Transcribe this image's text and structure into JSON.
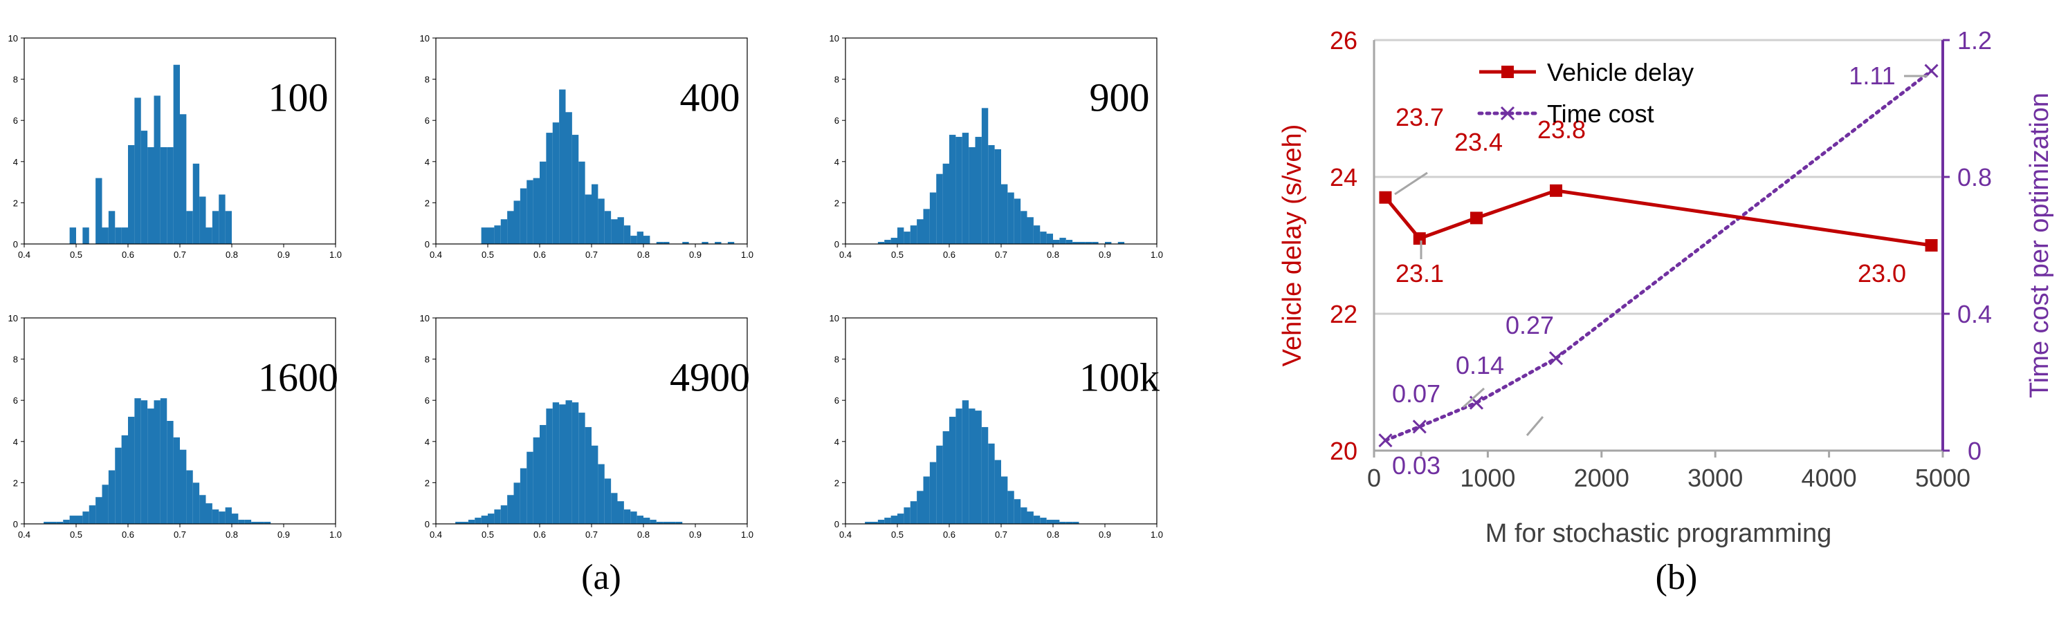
{
  "chart_data": [
    {
      "type": "bar",
      "panel": "a",
      "subtitle": "(a)",
      "histograms": [
        {
          "label": "100",
          "bin_width": 0.0125,
          "bins": [
            [
              0.4875,
              0.8
            ],
            [
              0.5125,
              0.8
            ],
            [
              0.5375,
              3.2
            ],
            [
              0.55,
              0.8
            ],
            [
              0.5625,
              1.6
            ],
            [
              0.575,
              0.8
            ],
            [
              0.5875,
              0.8
            ],
            [
              0.6,
              4.8
            ],
            [
              0.6125,
              7.1
            ],
            [
              0.625,
              5.5
            ],
            [
              0.6375,
              4.7
            ],
            [
              0.65,
              7.2
            ],
            [
              0.6625,
              4.7
            ],
            [
              0.675,
              4.7
            ],
            [
              0.6875,
              8.7
            ],
            [
              0.7,
              6.3
            ],
            [
              0.7125,
              1.6
            ],
            [
              0.725,
              3.9
            ],
            [
              0.7375,
              2.3
            ],
            [
              0.75,
              0.8
            ],
            [
              0.7625,
              1.6
            ],
            [
              0.775,
              2.4
            ],
            [
              0.7875,
              1.6
            ]
          ],
          "ylim": [
            0,
            10
          ],
          "xlim": [
            0.4,
            1.0
          ],
          "xticks": [
            "0.4",
            "0.5",
            "0.6",
            "0.7",
            "0.8",
            "0.9",
            "1.0"
          ],
          "yticks": [
            "0",
            "2",
            "4",
            "6",
            "8",
            "10"
          ]
        },
        {
          "label": "400",
          "bin_width": 0.0125,
          "bins": [
            [
              0.4875,
              0.8
            ],
            [
              0.5,
              0.8
            ],
            [
              0.5125,
              0.9
            ],
            [
              0.525,
              1.2
            ],
            [
              0.5375,
              1.6
            ],
            [
              0.55,
              2.1
            ],
            [
              0.5625,
              2.7
            ],
            [
              0.575,
              3.1
            ],
            [
              0.5875,
              3.2
            ],
            [
              0.6,
              4.0
            ],
            [
              0.6125,
              5.4
            ],
            [
              0.625,
              5.9
            ],
            [
              0.6375,
              7.5
            ],
            [
              0.65,
              6.4
            ],
            [
              0.6625,
              5.3
            ],
            [
              0.675,
              4.0
            ],
            [
              0.6875,
              2.4
            ],
            [
              0.7,
              2.9
            ],
            [
              0.7125,
              2.2
            ],
            [
              0.725,
              1.6
            ],
            [
              0.7375,
              1.2
            ],
            [
              0.75,
              1.3
            ],
            [
              0.7625,
              0.9
            ],
            [
              0.775,
              0.4
            ],
            [
              0.7875,
              0.6
            ],
            [
              0.8,
              0.4
            ],
            [
              0.825,
              0.1
            ],
            [
              0.8375,
              0.1
            ],
            [
              0.875,
              0.1
            ],
            [
              0.9125,
              0.1
            ],
            [
              0.9375,
              0.1
            ],
            [
              0.9625,
              0.1
            ]
          ],
          "ylim": [
            0,
            10
          ],
          "xlim": [
            0.4,
            1.0
          ],
          "xticks": [
            "0.4",
            "0.5",
            "0.6",
            "0.7",
            "0.8",
            "0.9",
            "1.0"
          ],
          "yticks": [
            "0",
            "2",
            "4",
            "6",
            "8",
            "10"
          ]
        },
        {
          "label": "900",
          "bin_width": 0.0125,
          "bins": [
            [
              0.4625,
              0.1
            ],
            [
              0.475,
              0.2
            ],
            [
              0.4875,
              0.3
            ],
            [
              0.5,
              0.8
            ],
            [
              0.5125,
              0.6
            ],
            [
              0.525,
              0.9
            ],
            [
              0.5375,
              1.2
            ],
            [
              0.55,
              1.7
            ],
            [
              0.5625,
              2.5
            ],
            [
              0.575,
              3.4
            ],
            [
              0.5875,
              3.9
            ],
            [
              0.6,
              5.3
            ],
            [
              0.6125,
              5.2
            ],
            [
              0.625,
              5.4
            ],
            [
              0.6375,
              4.7
            ],
            [
              0.65,
              5.2
            ],
            [
              0.6625,
              6.6
            ],
            [
              0.675,
              4.8
            ],
            [
              0.6875,
              4.6
            ],
            [
              0.7,
              2.9
            ],
            [
              0.7125,
              2.5
            ],
            [
              0.725,
              2.2
            ],
            [
              0.7375,
              1.6
            ],
            [
              0.75,
              1.3
            ],
            [
              0.7625,
              0.9
            ],
            [
              0.775,
              0.6
            ],
            [
              0.7875,
              0.5
            ],
            [
              0.8,
              0.2
            ],
            [
              0.8125,
              0.3
            ],
            [
              0.825,
              0.2
            ],
            [
              0.8375,
              0.1
            ],
            [
              0.85,
              0.1
            ],
            [
              0.8625,
              0.1
            ],
            [
              0.875,
              0.1
            ],
            [
              0.9,
              0.1
            ],
            [
              0.925,
              0.1
            ]
          ],
          "ylim": [
            0,
            10
          ],
          "xlim": [
            0.4,
            1.0
          ],
          "xticks": [
            "0.4",
            "0.5",
            "0.6",
            "0.7",
            "0.8",
            "0.9",
            "1.0"
          ],
          "yticks": [
            "0",
            "2",
            "4",
            "6",
            "8",
            "10"
          ]
        },
        {
          "label": "1600",
          "bin_width": 0.0125,
          "bins": [
            [
              0.4375,
              0.1
            ],
            [
              0.45,
              0.1
            ],
            [
              0.4625,
              0.1
            ],
            [
              0.475,
              0.2
            ],
            [
              0.4875,
              0.4
            ],
            [
              0.5,
              0.4
            ],
            [
              0.5125,
              0.6
            ],
            [
              0.525,
              0.9
            ],
            [
              0.5375,
              1.3
            ],
            [
              0.55,
              1.9
            ],
            [
              0.5625,
              2.6
            ],
            [
              0.575,
              3.7
            ],
            [
              0.5875,
              4.3
            ],
            [
              0.6,
              5.2
            ],
            [
              0.6125,
              6.1
            ],
            [
              0.625,
              6.0
            ],
            [
              0.6375,
              5.6
            ],
            [
              0.65,
              6.0
            ],
            [
              0.6625,
              6.1
            ],
            [
              0.675,
              5.0
            ],
            [
              0.6875,
              4.2
            ],
            [
              0.7,
              3.6
            ],
            [
              0.7125,
              2.6
            ],
            [
              0.725,
              2.0
            ],
            [
              0.7375,
              1.4
            ],
            [
              0.75,
              1.0
            ],
            [
              0.7625,
              0.7
            ],
            [
              0.775,
              0.6
            ],
            [
              0.7875,
              0.8
            ],
            [
              0.8,
              0.5
            ],
            [
              0.8125,
              0.2
            ],
            [
              0.825,
              0.2
            ],
            [
              0.8375,
              0.1
            ],
            [
              0.85,
              0.1
            ],
            [
              0.8625,
              0.1
            ]
          ],
          "ylim": [
            0,
            10
          ],
          "xlim": [
            0.4,
            1.0
          ],
          "xticks": [
            "0.4",
            "0.5",
            "0.6",
            "0.7",
            "0.8",
            "0.9",
            "1.0"
          ],
          "yticks": [
            "0",
            "2",
            "4",
            "6",
            "8",
            "10"
          ]
        },
        {
          "label": "4900",
          "bin_width": 0.0125,
          "bins": [
            [
              0.4375,
              0.1
            ],
            [
              0.45,
              0.1
            ],
            [
              0.4625,
              0.2
            ],
            [
              0.475,
              0.3
            ],
            [
              0.4875,
              0.4
            ],
            [
              0.5,
              0.5
            ],
            [
              0.5125,
              0.7
            ],
            [
              0.525,
              0.9
            ],
            [
              0.5375,
              1.4
            ],
            [
              0.55,
              2.0
            ],
            [
              0.5625,
              2.7
            ],
            [
              0.575,
              3.5
            ],
            [
              0.5875,
              4.2
            ],
            [
              0.6,
              4.8
            ],
            [
              0.6125,
              5.6
            ],
            [
              0.625,
              5.9
            ],
            [
              0.6375,
              5.8
            ],
            [
              0.65,
              6.0
            ],
            [
              0.6625,
              5.9
            ],
            [
              0.675,
              5.4
            ],
            [
              0.6875,
              4.7
            ],
            [
              0.7,
              3.8
            ],
            [
              0.7125,
              2.9
            ],
            [
              0.725,
              2.2
            ],
            [
              0.7375,
              1.5
            ],
            [
              0.75,
              1.1
            ],
            [
              0.7625,
              0.7
            ],
            [
              0.775,
              0.6
            ],
            [
              0.7875,
              0.4
            ],
            [
              0.8,
              0.3
            ],
            [
              0.8125,
              0.2
            ],
            [
              0.825,
              0.1
            ],
            [
              0.8375,
              0.1
            ],
            [
              0.85,
              0.1
            ],
            [
              0.8625,
              0.1
            ]
          ],
          "ylim": [
            0,
            10
          ],
          "xlim": [
            0.4,
            1.0
          ],
          "xticks": [
            "0.4",
            "0.5",
            "0.6",
            "0.7",
            "0.8",
            "0.9",
            "1.0"
          ],
          "yticks": [
            "0",
            "2",
            "4",
            "6",
            "8",
            "10"
          ]
        },
        {
          "label": "100k",
          "bin_width": 0.0125,
          "bins": [
            [
              0.4375,
              0.1
            ],
            [
              0.45,
              0.1
            ],
            [
              0.4625,
              0.2
            ],
            [
              0.475,
              0.3
            ],
            [
              0.4875,
              0.4
            ],
            [
              0.5,
              0.5
            ],
            [
              0.5125,
              0.8
            ],
            [
              0.525,
              1.1
            ],
            [
              0.5375,
              1.6
            ],
            [
              0.55,
              2.3
            ],
            [
              0.5625,
              3.0
            ],
            [
              0.575,
              3.8
            ],
            [
              0.5875,
              4.5
            ],
            [
              0.6,
              5.2
            ],
            [
              0.6125,
              5.6
            ],
            [
              0.625,
              6.0
            ],
            [
              0.6375,
              5.6
            ],
            [
              0.65,
              5.5
            ],
            [
              0.6625,
              4.7
            ],
            [
              0.675,
              3.9
            ],
            [
              0.6875,
              3.1
            ],
            [
              0.7,
              2.3
            ],
            [
              0.7125,
              1.6
            ],
            [
              0.725,
              1.2
            ],
            [
              0.7375,
              0.8
            ],
            [
              0.75,
              0.6
            ],
            [
              0.7625,
              0.4
            ],
            [
              0.775,
              0.3
            ],
            [
              0.7875,
              0.2
            ],
            [
              0.8,
              0.2
            ],
            [
              0.8125,
              0.1
            ],
            [
              0.825,
              0.1
            ],
            [
              0.8375,
              0.1
            ]
          ],
          "ylim": [
            0,
            10
          ],
          "xlim": [
            0.4,
            1.0
          ],
          "xticks": [
            "0.4",
            "0.5",
            "0.6",
            "0.7",
            "0.8",
            "0.9",
            "1.0"
          ],
          "yticks": [
            "0",
            "2",
            "4",
            "6",
            "8",
            "10"
          ]
        }
      ]
    },
    {
      "type": "line",
      "panel": "b",
      "subtitle": "(b)",
      "xlabel": "M for stochastic programming",
      "ylabel": "Vehicle delay (s/veh)",
      "y2label": "Time cost per optimization",
      "xlim": [
        0,
        5000
      ],
      "ylim": [
        20,
        26
      ],
      "y2lim": [
        0,
        1.2
      ],
      "xticks": [
        "0",
        "1000",
        "2000",
        "3000",
        "4000",
        "5000"
      ],
      "yticks": [
        "20",
        "22",
        "24",
        "26"
      ],
      "y2ticks": [
        "0",
        "0.4",
        "0.8",
        "1.2"
      ],
      "grid": "horizontal",
      "legend": "top-center",
      "series": [
        {
          "name": "Vehicle delay",
          "axis": "left",
          "color": "#c00000",
          "marker": "square",
          "line": "solid",
          "x": [
            100,
            400,
            900,
            1600,
            4900
          ],
          "y": [
            23.7,
            23.1,
            23.4,
            23.8,
            23.0
          ],
          "labels": [
            "23.7",
            "23.1",
            "23.4",
            "23.8",
            "23.0"
          ]
        },
        {
          "name": "Time cost",
          "axis": "right",
          "color": "#7030a0",
          "marker": "x",
          "line": "dotted",
          "x": [
            100,
            400,
            900,
            1600,
            4900
          ],
          "y": [
            0.03,
            0.07,
            0.14,
            0.27,
            1.11
          ],
          "labels": [
            "0.03",
            "0.07",
            "0.14",
            "0.27",
            "1.11"
          ]
        }
      ]
    }
  ]
}
